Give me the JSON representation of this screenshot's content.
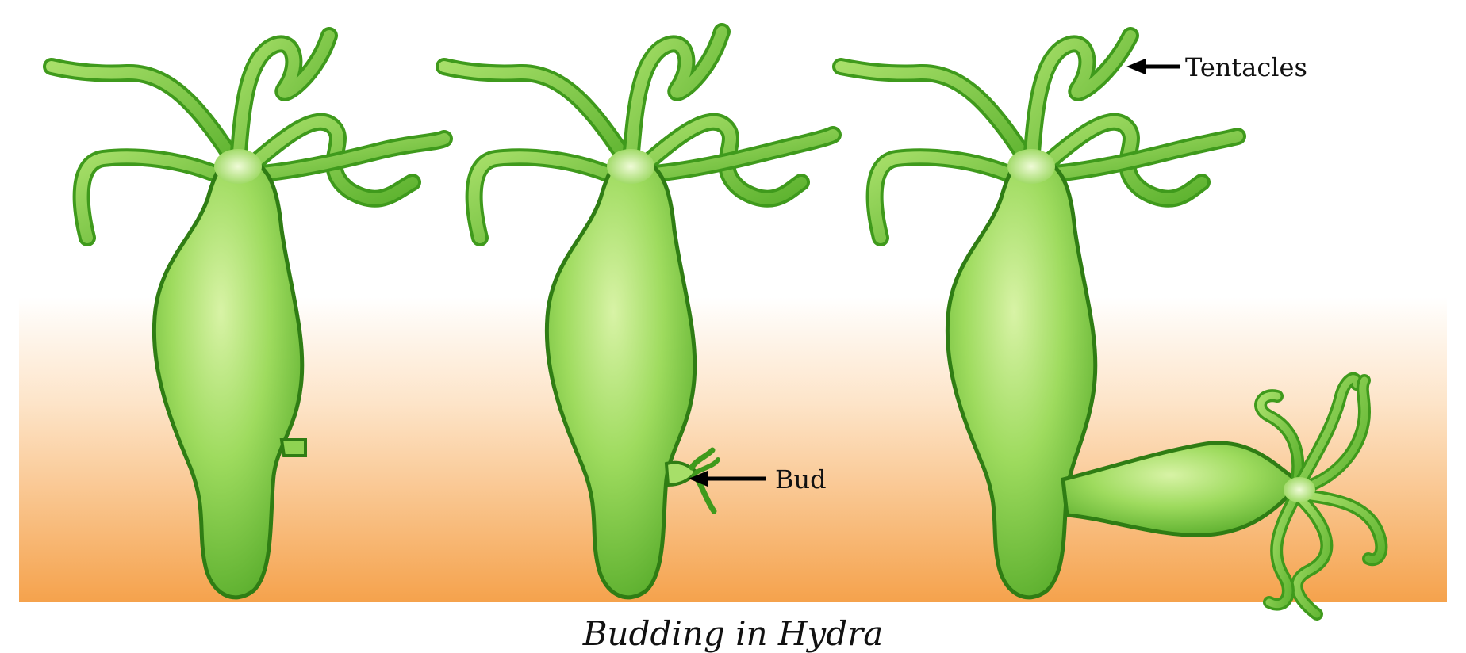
{
  "labels": {
    "tentacles": "Tentacles",
    "bud": "Bud"
  },
  "caption": "Budding in Hydra",
  "colors": {
    "ground_top": "#ffffff",
    "ground_bottom": "#f4a04a",
    "body_light": "#c9ec8e",
    "body_mid": "#8fd352",
    "body_dark": "#3f9a1c",
    "outline": "#2f7d14",
    "arrow": "#000000"
  }
}
